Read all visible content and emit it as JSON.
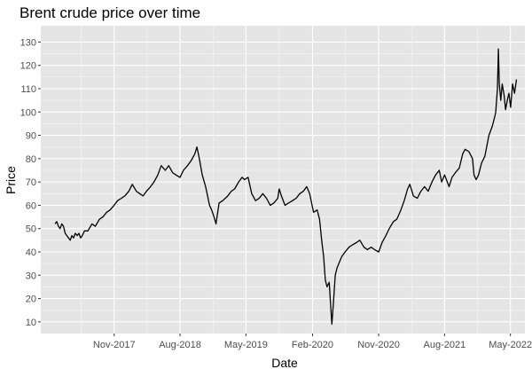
{
  "chart_data": {
    "type": "line",
    "title": "Brent crude price over time",
    "xlabel": "Date",
    "ylabel": "Price",
    "xlim": [
      "2017-01-01",
      "2022-06-30"
    ],
    "ylim": [
      5,
      137
    ],
    "x_ticks": [
      {
        "date": "2017-11-01",
        "label": "Nov-2017"
      },
      {
        "date": "2018-08-01",
        "label": "Aug-2018"
      },
      {
        "date": "2019-05-01",
        "label": "May-2019"
      },
      {
        "date": "2020-02-01",
        "label": "Feb-2020"
      },
      {
        "date": "2020-11-01",
        "label": "Nov-2020"
      },
      {
        "date": "2021-08-01",
        "label": "Aug-2021"
      },
      {
        "date": "2022-05-01",
        "label": "May-2022"
      }
    ],
    "y_ticks": [
      10,
      20,
      30,
      40,
      50,
      60,
      70,
      80,
      90,
      100,
      110,
      120,
      130
    ],
    "grid": true,
    "background": "#e5e5e5",
    "grid_color": "#ffffff",
    "line_color": "#000000",
    "series": [
      {
        "x": [
          "2017-03-01",
          "2017-03-08",
          "2017-03-15",
          "2017-03-22",
          "2017-03-29",
          "2017-04-05",
          "2017-04-12",
          "2017-04-19",
          "2017-04-26",
          "2017-05-03",
          "2017-05-10",
          "2017-05-17",
          "2017-05-24",
          "2017-06-01",
          "2017-06-08",
          "2017-06-15",
          "2017-06-22",
          "2017-07-01",
          "2017-07-15",
          "2017-08-01",
          "2017-08-15",
          "2017-09-01",
          "2017-09-15",
          "2017-10-01",
          "2017-10-15",
          "2017-11-01",
          "2017-11-15",
          "2017-12-01",
          "2017-12-15",
          "2018-01-01",
          "2018-01-15",
          "2018-02-01",
          "2018-02-15",
          "2018-03-01",
          "2018-03-15",
          "2018-04-01",
          "2018-04-15",
          "2018-05-01",
          "2018-05-15",
          "2018-06-01",
          "2018-06-15",
          "2018-07-01",
          "2018-07-15",
          "2018-08-01",
          "2018-08-15",
          "2018-09-01",
          "2018-09-15",
          "2018-10-01",
          "2018-10-10",
          "2018-10-20",
          "2018-11-01",
          "2018-11-15",
          "2018-12-01",
          "2018-12-10",
          "2018-12-20",
          "2018-12-28",
          "2019-01-10",
          "2019-01-25",
          "2019-02-15",
          "2019-03-01",
          "2019-03-15",
          "2019-04-01",
          "2019-04-15",
          "2019-04-25",
          "2019-05-10",
          "2019-05-25",
          "2019-06-10",
          "2019-06-25",
          "2019-07-10",
          "2019-07-25",
          "2019-08-10",
          "2019-08-25",
          "2019-09-10",
          "2019-09-16",
          "2019-09-25",
          "2019-10-10",
          "2019-10-25",
          "2019-11-10",
          "2019-11-25",
          "2019-12-10",
          "2019-12-25",
          "2020-01-08",
          "2020-01-20",
          "2020-02-05",
          "2020-02-20",
          "2020-03-01",
          "2020-03-10",
          "2020-03-18",
          "2020-03-25",
          "2020-04-01",
          "2020-04-10",
          "2020-04-15",
          "2020-04-21",
          "2020-04-28",
          "2020-05-05",
          "2020-05-12",
          "2020-05-20",
          "2020-06-01",
          "2020-06-15",
          "2020-07-01",
          "2020-07-15",
          "2020-08-01",
          "2020-08-15",
          "2020-09-01",
          "2020-09-15",
          "2020-10-01",
          "2020-10-15",
          "2020-11-01",
          "2020-11-15",
          "2020-12-01",
          "2020-12-15",
          "2021-01-01",
          "2021-01-15",
          "2021-02-01",
          "2021-02-15",
          "2021-03-01",
          "2021-03-10",
          "2021-03-25",
          "2021-04-10",
          "2021-04-25",
          "2021-05-10",
          "2021-05-25",
          "2021-06-10",
          "2021-06-25",
          "2021-07-10",
          "2021-07-20",
          "2021-08-01",
          "2021-08-20",
          "2021-09-01",
          "2021-09-15",
          "2021-10-01",
          "2021-10-15",
          "2021-10-25",
          "2021-11-10",
          "2021-11-25",
          "2021-12-01",
          "2021-12-10",
          "2021-12-20",
          "2022-01-01",
          "2022-01-15",
          "2022-02-01",
          "2022-02-15",
          "2022-02-25",
          "2022-03-01",
          "2022-03-08",
          "2022-03-12",
          "2022-03-16",
          "2022-03-22",
          "2022-03-28",
          "2022-04-05",
          "2022-04-11",
          "2022-04-18",
          "2022-04-25",
          "2022-05-02",
          "2022-05-10",
          "2022-05-18",
          "2022-05-26"
        ],
        "y": [
          52,
          53,
          51,
          50,
          52,
          51,
          48,
          47,
          46,
          45,
          47,
          46,
          48,
          47,
          48,
          46,
          47,
          49,
          49,
          52,
          51,
          54,
          55,
          57,
          58,
          60,
          62,
          63,
          64,
          66,
          69,
          66,
          65,
          64,
          66,
          68,
          70,
          73,
          77,
          75,
          77,
          74,
          73,
          72,
          75,
          77,
          79,
          82,
          85,
          80,
          73,
          68,
          60,
          58,
          55,
          52,
          61,
          62,
          64,
          66,
          67,
          70,
          72,
          71,
          72,
          65,
          62,
          63,
          65,
          63,
          60,
          61,
          63,
          67,
          64,
          60,
          61,
          62,
          63,
          65,
          66,
          68,
          65,
          57,
          58,
          54,
          45,
          38,
          28,
          25,
          27,
          19,
          9,
          19,
          30,
          33,
          35,
          38,
          40,
          42,
          43,
          44,
          45,
          42,
          41,
          42,
          41,
          40,
          44,
          47,
          50,
          53,
          54,
          58,
          62,
          67,
          69,
          64,
          63,
          66,
          68,
          66,
          70,
          73,
          75,
          70,
          73,
          68,
          72,
          74,
          76,
          82,
          84,
          83,
          80,
          73,
          71,
          73,
          78,
          81,
          90,
          94,
          98,
          100,
          110,
          127,
          112,
          105,
          112,
          107,
          101,
          105,
          108,
          102,
          112,
          108,
          114
        ]
      }
    ]
  }
}
